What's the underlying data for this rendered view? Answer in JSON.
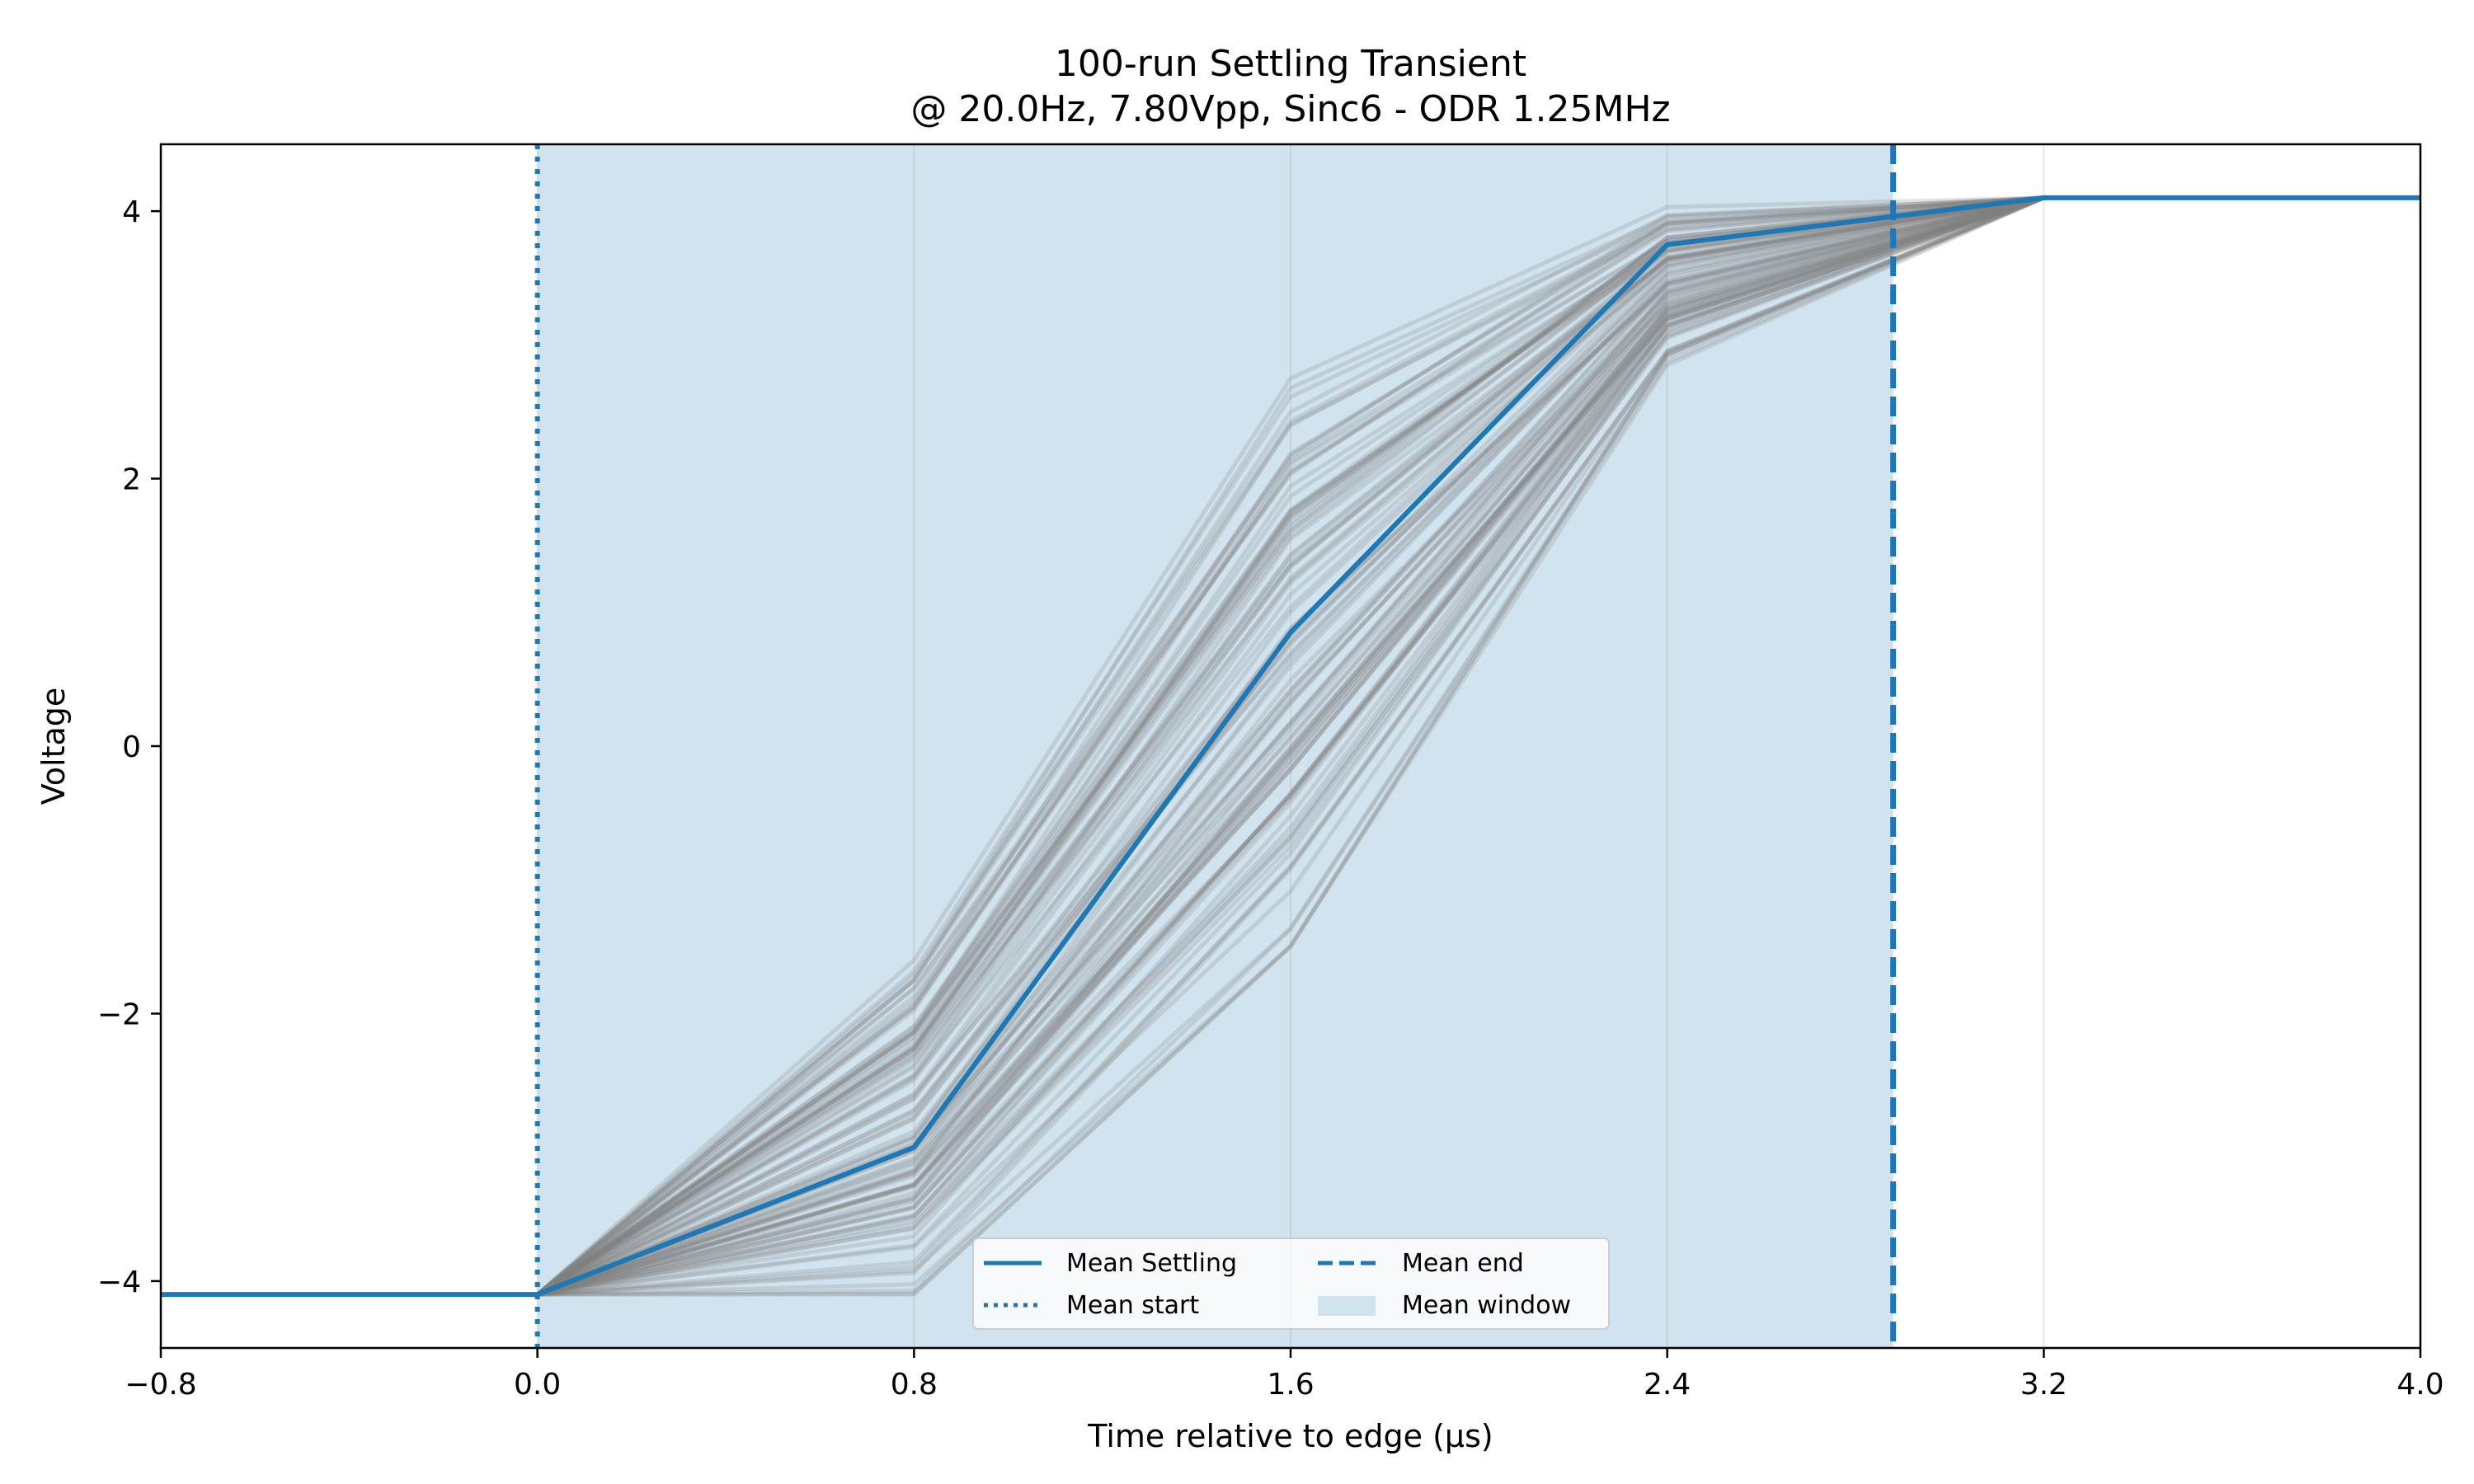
{
  "chart_data": {
    "type": "line",
    "title": "100-run Settling Transient",
    "subtitle": "@ 20.0Hz, 7.80Vpp, Sinc6 - ODR 1.25MHz",
    "xlabel": "Time relative to edge (µs)",
    "ylabel": "Voltage",
    "xlim": [
      -0.8,
      4.0
    ],
    "ylim": [
      -4.5,
      4.5
    ],
    "xticks": [
      -0.8,
      0.0,
      0.8,
      1.6,
      2.4,
      3.2,
      4.0
    ],
    "xtick_labels": [
      "−0.8",
      "0.0",
      "0.8",
      "1.6",
      "2.4",
      "3.2",
      "4.0"
    ],
    "yticks": [
      -4,
      -2,
      0,
      2,
      4
    ],
    "ytick_labels": [
      "−4",
      "−2",
      "0",
      "2",
      "4"
    ],
    "grid": "vertical",
    "legend_position": "bottom-center",
    "legend": {
      "mean_settling": "Mean Settling",
      "mean_start": "Mean start",
      "mean_end": "Mean end",
      "mean_window": "Mean window"
    },
    "mean_start": 0.0,
    "mean_end": 2.88,
    "mean_window": [
      0.0,
      2.88
    ],
    "mean_series": {
      "x": [
        -0.8,
        0.0,
        0.8,
        1.6,
        2.4,
        3.2,
        4.0
      ],
      "y": [
        -4.1,
        -4.1,
        -3.0,
        0.85,
        3.75,
        4.1,
        4.1
      ]
    },
    "runs": {
      "count": 100,
      "x": [
        -0.8,
        0.0,
        0.8,
        1.6,
        2.4,
        3.2,
        4.0
      ],
      "y_at_0_8": [
        -1.6,
        -4.1
      ],
      "y_at_1_6": [
        2.75,
        -1.5
      ],
      "y_at_2_4": [
        4.1,
        2.8
      ],
      "y_start": -4.1,
      "y_end": 4.1
    },
    "colors": {
      "mean": "#1f77b4",
      "runs": "#808080",
      "window": "#d1e3ef"
    }
  }
}
